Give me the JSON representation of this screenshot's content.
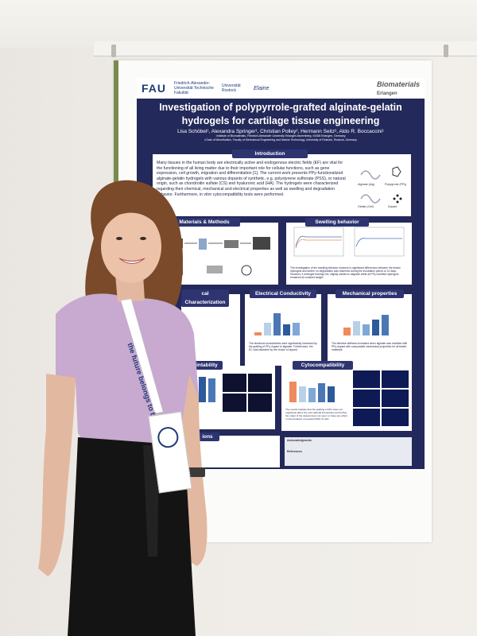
{
  "poster": {
    "logos": {
      "fau": "FAU",
      "fau_sub": "Friedrich-Alexander-Universität Technische Fakultät",
      "rostock": "Universität Rostock",
      "elaine": "Elaine",
      "biomaterials": "Biomaterials",
      "erlangen": "Erlangen"
    },
    "title_line1": "Investigation of polypyrrole-grafted alginate-gelatin",
    "title_line2": "hydrogels for cartilage tissue engineering",
    "authors": "Lisa Schöbel¹, Alexandra Springer¹, Christian Polley², Hermann Seitz², Aldo R. Boccaccini¹",
    "affiliation1": "¹Institute of Biomaterials, Friedrich-Alexander University Erlangen-Nuremberg, 91058 Erlangen, Germany",
    "affiliation2": "²Chair of Microfluidics, Faculty of Mechanical Engineering and Marine Technology, University of Rostock, Rostock, Germany",
    "sections": {
      "introduction": "Introduction",
      "materials": "Materials & Methods",
      "swelling": "Swelling behavior",
      "characterization": "cal Characterization",
      "conductivity": "Electrical Conductivity",
      "mechanical": "Mechanical properties",
      "printability": "Printability",
      "cytocompat": "Cytocompatibility",
      "conclusions": "ions"
    },
    "intro_text": "Many tissues in the human body are electrically active and endogenous electric fields (EF) are vital for the functioning of all living matter due to their important role for cellular functions, such as gene expression, cell growth, migration and differentiation [1]. The current work presents PPy-functionalized alginate-gelatin hydrogels with various dopants of synthetic, e.g. polystyrene sulfonate (PSS), or natural origin, such as chondroitin sulfate (CS) and hyaluronic acid (HA). The hydrogels were characterized regarding their chemical, mechanical and electrical properties as well as swelling and degradation behavior. Furthermore, in vitro cytocompatibility tests were performed.",
    "intro_diagram": {
      "alginate": "Alginate (Alg)",
      "polypyrrole": "Polypyrrole (PPy)",
      "gelatin": "Gelatin (Gel)",
      "dopant": "Dopant"
    },
    "swelling_text": "The investigation of the swelling behavior showed no significant differences between the tested hydrogels and further no degradation was observed during the incubation period of 14 days. However, it emerged that Alg-Gel, slightly started to degrade while all PPy-modified hydrogels remained at constant weight.",
    "conductivity_text": "The electrical conductivities were significantly increased by the grafting of PPy dopant to alginate. Furthermore, the EC was tailorable by the choice of dopant.",
    "mechanical_text": "The effective stiffness increased when alginate was modified with PPy-dopant with comparable mechanical properties for all tested materials.",
    "cyto_text": "The results indicate that the grafting of PPy does not negatively affect the cell-material interactions and further the origin of the dopant does not seem to have any effect on the behavior of seeded ATDC-5 cells.",
    "acknowledgments": "Acknowledgments",
    "references": "References"
  },
  "person": {
    "lanyard": "the future belongs to bionics"
  },
  "colors": {
    "poster_navy": "#23295a",
    "panel_title": "#2d3470",
    "bar_orange": "#f08a5d",
    "bar_blue": "#4a78b5",
    "shirt_lilac": "#c8a9cf",
    "pants_black": "#141414",
    "hair_brown": "#7a4a2a"
  }
}
